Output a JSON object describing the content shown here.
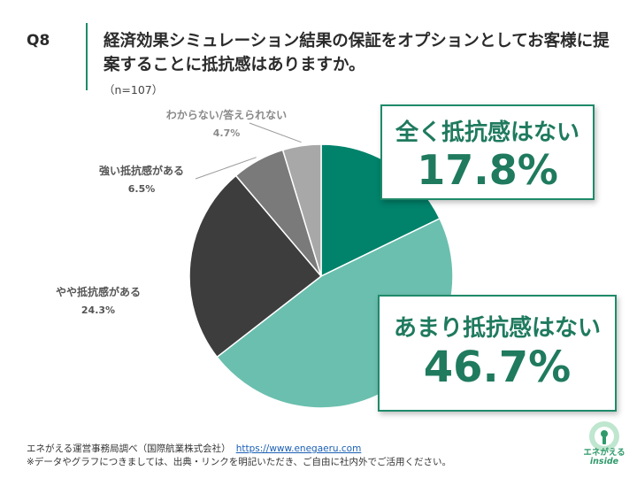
{
  "header": {
    "q_number": "Q8",
    "question": "経済効果シミュレーション結果の保証をオプションとしてお客様に提案することに抵抗感はありますか。",
    "sample_size": "（n=107）"
  },
  "callouts": {
    "top_label": "全く抵抗感はない",
    "top_pct": "17.8%",
    "bottom_label": "あまり抵抗感はない",
    "bottom_pct": "46.7%"
  },
  "footer": {
    "source": "エネがえる運営事務局調べ（国際航業株式会社）",
    "url": "https://www.enegaeru.com",
    "note": "※データやグラフにつきましては、出典・リンクを明記いただき、ご自由に社内外でご活用ください。"
  },
  "logo": {
    "line1": "エネがえる",
    "line2": "inside"
  },
  "chart_data": {
    "type": "pie",
    "title": "",
    "start_angle_deg": 0,
    "direction": "clockwise",
    "slices": [
      {
        "label": "全く抵抗感はない",
        "value": 17.8,
        "display": "17.8%",
        "color": "#00826b"
      },
      {
        "label": "あまり抵抗感はない",
        "value": 46.7,
        "display": "46.7%",
        "color": "#6bbfae"
      },
      {
        "label": "やや抵抗感がある",
        "value": 24.3,
        "display": "24.3%",
        "color": "#3d3d3d"
      },
      {
        "label": "強い抵抗感がある",
        "value": 6.5,
        "display": "6.5%",
        "color": "#7a7a7a"
      },
      {
        "label": "わからない/答えられない",
        "value": 4.7,
        "display": "4.7%",
        "color": "#a8a8a8"
      }
    ],
    "legend": "none"
  }
}
